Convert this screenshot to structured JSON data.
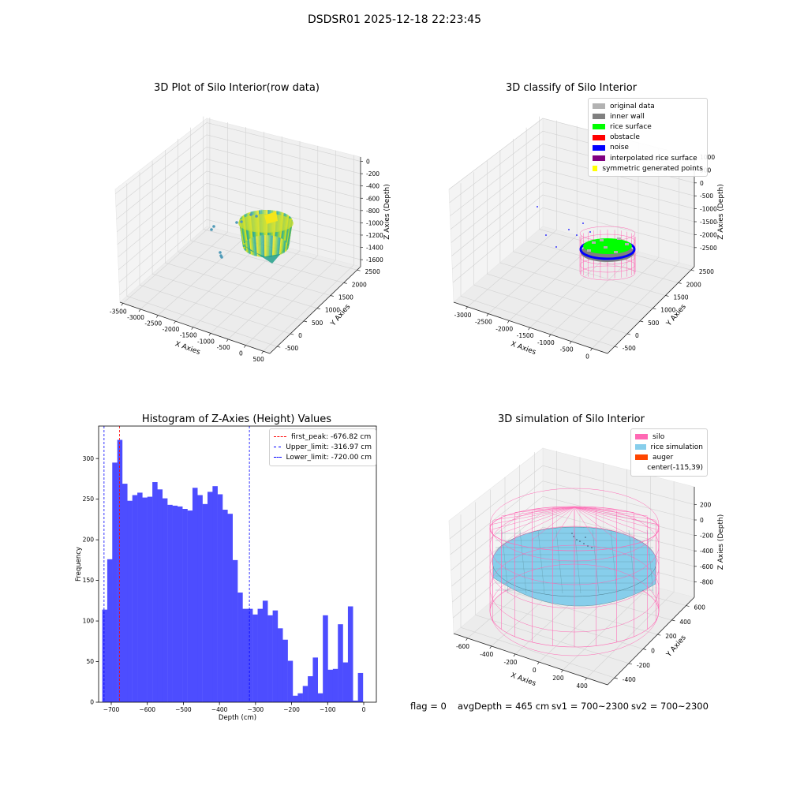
{
  "suptitle": "DSDSR01 2025-12-18 22:23:45",
  "footer": {
    "flag": "flag = 0",
    "avg_depth": "avgDepth = 465 cm",
    "sv1": "sv1 = 700~2300",
    "sv2": "sv2 = 700~2300"
  },
  "colors": {
    "original": "#b2b2b2",
    "inner_wall": "#808080",
    "rice_surface": "#00ff00",
    "obstacle": "#ff0000",
    "noise": "#0000ff",
    "interpolated": "#800080",
    "symmetric": "#ffff00",
    "silo": "#ff69b4",
    "rice_sim": "#87ceeb",
    "auger": "#ff4500",
    "hist_bar": "#4d4dff"
  },
  "plot1": {
    "title": "3D Plot of Silo Interior(row data)",
    "xlabel": "X Axies",
    "ylabel": "Y Axies",
    "zlabel": "Z Axies (Depth)",
    "xticks": [
      "-3500",
      "-3000",
      "-2500",
      "-2000",
      "-1500",
      "-1000",
      "-500",
      "0",
      "500"
    ],
    "yticks": [
      "-500",
      "0",
      "500",
      "1000",
      "1500",
      "2000",
      "2500"
    ],
    "zticks": [
      "0",
      "-200",
      "-400",
      "-600",
      "-800",
      "-1000",
      "-1200",
      "-1400",
      "-1600"
    ]
  },
  "plot2": {
    "title": "3D classify of Silo Interior",
    "xlabel": "X Axies",
    "ylabel": "Y Axies",
    "zlabel": "Z Axies (Depth)",
    "xticks": [
      "-3000",
      "-2500",
      "-2000",
      "-1500",
      "-1000",
      "-500",
      "0"
    ],
    "yticks": [
      "-500",
      "0",
      "500",
      "1000",
      "1500",
      "2000",
      "2500"
    ],
    "zticks": [
      "1000",
      "500",
      "0",
      "-500",
      "-1000",
      "-1500",
      "-2000",
      "-2500"
    ],
    "legend": [
      {
        "label": "original data",
        "color": "#b2b2b2"
      },
      {
        "label": "inner wall",
        "color": "#808080"
      },
      {
        "label": "rice surface",
        "color": "#00ff00"
      },
      {
        "label": "obstacle",
        "color": "#ff0000"
      },
      {
        "label": "noise",
        "color": "#0000ff"
      },
      {
        "label": "interpolated rice surface",
        "color": "#800080"
      },
      {
        "label": "symmetric generated points",
        "color": "#ffff00"
      }
    ]
  },
  "plot4": {
    "title": "3D simulation of Silo Interior",
    "xlabel": "X Axies",
    "ylabel": "Y Axies",
    "zlabel": "Z Axies (Depth)",
    "xticks": [
      "-600",
      "-400",
      "-200",
      "0",
      "200",
      "400"
    ],
    "yticks": [
      "-400",
      "-200",
      "0",
      "200",
      "400",
      "600"
    ],
    "zticks": [
      "200",
      "0",
      "-200",
      "-400",
      "-600",
      "-800"
    ],
    "legend": [
      {
        "label": "silo",
        "color": "#ff69b4"
      },
      {
        "label": "rice simulation",
        "color": "#87ceeb"
      },
      {
        "label": "auger",
        "color": "#ff4500"
      },
      {
        "label": "center(-115,39)",
        "color": ""
      }
    ]
  },
  "chart_data": [
    {
      "type": "bar",
      "title": "Histogram of Z-Axies (Height) Values",
      "xlabel": "Depth (cm)",
      "ylabel": "Frequency",
      "xlim": [
        -735,
        35
      ],
      "ylim": [
        0,
        340
      ],
      "xticks": [
        -700,
        -600,
        -500,
        -400,
        -300,
        -200,
        -100,
        0
      ],
      "yticks": [
        0,
        50,
        100,
        150,
        200,
        250,
        300
      ],
      "bin_start": -725,
      "bin_width": 13.9,
      "values": [
        114,
        176,
        295,
        323,
        269,
        248,
        255,
        258,
        252,
        253,
        271,
        262,
        251,
        243,
        242,
        241,
        238,
        236,
        264,
        255,
        244,
        259,
        266,
        256,
        237,
        232,
        175,
        135,
        115,
        115,
        108,
        115,
        125,
        107,
        113,
        91,
        77,
        51,
        8,
        11,
        20,
        32,
        55,
        11,
        107,
        40,
        41,
        96,
        49,
        118,
        2,
        36
      ],
      "lines": [
        {
          "label": "first_peak: -676.82 cm",
          "x": -676.82,
          "color": "#ff0000"
        },
        {
          "label": "Upper_limit: -316.97 cm",
          "x": -316.97,
          "color": "#0000ff"
        },
        {
          "label": "Lower_limit: -720.00 cm",
          "x": -720.0,
          "color": "#0000ff"
        }
      ]
    }
  ]
}
